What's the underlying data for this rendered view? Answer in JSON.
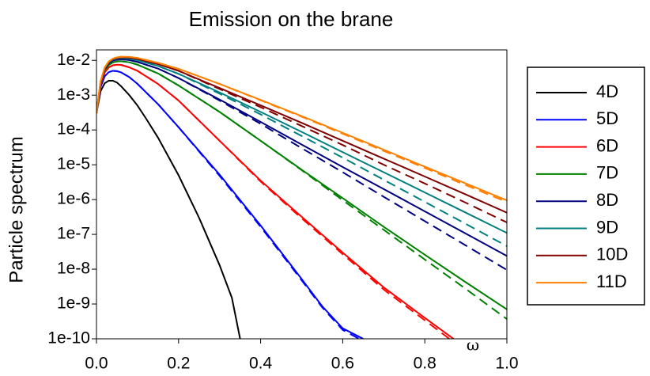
{
  "chart_data": {
    "type": "line",
    "title": "Emission on the brane",
    "xlabel": "ω",
    "ylabel": "Particle spectrum",
    "yscale": "log",
    "xlim": [
      0.0,
      1.0
    ],
    "ylim": [
      1e-10,
      0.02
    ],
    "x_ticks": [
      "0.0",
      "0.2",
      "0.4",
      "0.6",
      "0.8",
      "1.0"
    ],
    "y_ticks": [
      "1e-2",
      "1e-3",
      "1e-4",
      "1e-5",
      "1e-6",
      "1e-7",
      "1e-8",
      "1e-9",
      "1e-10"
    ],
    "legend_position": "right",
    "grid": false,
    "series": [
      {
        "name": "4D",
        "color": "#000000",
        "solid": [
          [
            0.0,
            0.0003
          ],
          [
            0.01,
            0.0013
          ],
          [
            0.02,
            0.0022
          ],
          [
            0.03,
            0.0026
          ],
          [
            0.04,
            0.0026
          ],
          [
            0.05,
            0.0023
          ],
          [
            0.06,
            0.0018
          ],
          [
            0.08,
            0.001
          ],
          [
            0.1,
            0.0005
          ],
          [
            0.12,
            0.00022
          ],
          [
            0.15,
            6e-05
          ],
          [
            0.2,
            5e-06
          ],
          [
            0.25,
            3e-07
          ],
          [
            0.3,
            1.3e-08
          ],
          [
            0.33,
            1.5e-09
          ],
          [
            0.35,
            1e-10
          ]
        ],
        "dashed": null
      },
      {
        "name": "5D",
        "color": "#0000ff",
        "solid": [
          [
            0.0,
            0.0003
          ],
          [
            0.01,
            0.0017
          ],
          [
            0.02,
            0.0035
          ],
          [
            0.03,
            0.0046
          ],
          [
            0.04,
            0.005
          ],
          [
            0.05,
            0.0049
          ],
          [
            0.06,
            0.0045
          ],
          [
            0.08,
            0.0033
          ],
          [
            0.1,
            0.0021
          ],
          [
            0.15,
            0.00055
          ],
          [
            0.2,
            0.00012
          ],
          [
            0.3,
            5.2e-06
          ],
          [
            0.4,
            1.8e-07
          ],
          [
            0.5,
            5.2e-09
          ],
          [
            0.55,
            8.6e-10
          ],
          [
            0.6,
            2e-10
          ],
          [
            0.65,
            1e-10
          ]
        ],
        "dashed": [
          [
            0.0,
            0.0003
          ],
          [
            0.01,
            0.0017
          ],
          [
            0.02,
            0.0035
          ],
          [
            0.03,
            0.0046
          ],
          [
            0.04,
            0.005
          ],
          [
            0.05,
            0.0049
          ],
          [
            0.06,
            0.0045
          ],
          [
            0.08,
            0.0033
          ],
          [
            0.1,
            0.0021
          ],
          [
            0.15,
            0.00055
          ],
          [
            0.2,
            0.00012
          ],
          [
            0.3,
            4.8e-06
          ],
          [
            0.4,
            1.65e-07
          ],
          [
            0.5,
            4.8e-09
          ],
          [
            0.55,
            8e-10
          ],
          [
            0.6,
            1.8e-10
          ],
          [
            0.64,
            1e-10
          ]
        ]
      },
      {
        "name": "6D",
        "color": "#ff0000",
        "solid": [
          [
            0.0,
            0.0003
          ],
          [
            0.01,
            0.002
          ],
          [
            0.02,
            0.0045
          ],
          [
            0.03,
            0.0063
          ],
          [
            0.04,
            0.0072
          ],
          [
            0.05,
            0.0075
          ],
          [
            0.06,
            0.0074
          ],
          [
            0.08,
            0.0063
          ],
          [
            0.1,
            0.005
          ],
          [
            0.15,
            0.0021
          ],
          [
            0.2,
            0.0007
          ],
          [
            0.3,
            4.9e-05
          ],
          [
            0.4,
            3.5e-06
          ],
          [
            0.5,
            3.2e-07
          ],
          [
            0.6,
            3e-08
          ],
          [
            0.7,
            3e-09
          ],
          [
            0.8,
            4e-10
          ],
          [
            0.87,
            1e-10
          ]
        ],
        "dashed": [
          [
            0.0,
            0.0003
          ],
          [
            0.01,
            0.002
          ],
          [
            0.02,
            0.0045
          ],
          [
            0.03,
            0.0063
          ],
          [
            0.04,
            0.0072
          ],
          [
            0.05,
            0.0075
          ],
          [
            0.06,
            0.0074
          ],
          [
            0.08,
            0.0063
          ],
          [
            0.1,
            0.005
          ],
          [
            0.15,
            0.0021
          ],
          [
            0.2,
            0.0007
          ],
          [
            0.3,
            4.9e-05
          ],
          [
            0.4,
            3.3e-06
          ],
          [
            0.5,
            2.9e-07
          ],
          [
            0.6,
            2.7e-08
          ],
          [
            0.7,
            2.6e-09
          ],
          [
            0.8,
            3.4e-10
          ],
          [
            0.86,
            1e-10
          ]
        ]
      },
      {
        "name": "7D",
        "color": "#008000",
        "solid": [
          [
            0.0,
            0.0003
          ],
          [
            0.01,
            0.0022
          ],
          [
            0.02,
            0.0052
          ],
          [
            0.03,
            0.0074
          ],
          [
            0.04,
            0.0087
          ],
          [
            0.05,
            0.0093
          ],
          [
            0.06,
            0.0094
          ],
          [
            0.08,
            0.0088
          ],
          [
            0.1,
            0.0075
          ],
          [
            0.15,
            0.0042
          ],
          [
            0.2,
            0.0019
          ],
          [
            0.3,
            0.00033
          ],
          [
            0.4,
            4.9e-05
          ],
          [
            0.5,
            7.2e-06
          ],
          [
            0.6,
            1.1e-06
          ],
          [
            0.7,
            1.65e-07
          ],
          [
            0.8,
            2.6e-08
          ],
          [
            0.9,
            4.2e-09
          ],
          [
            1.0,
            7e-10
          ]
        ],
        "dashed": [
          [
            0.0,
            0.0003
          ],
          [
            0.01,
            0.0022
          ],
          [
            0.02,
            0.0052
          ],
          [
            0.03,
            0.0074
          ],
          [
            0.04,
            0.0087
          ],
          [
            0.05,
            0.0093
          ],
          [
            0.06,
            0.0094
          ],
          [
            0.08,
            0.0088
          ],
          [
            0.1,
            0.0075
          ],
          [
            0.15,
            0.0042
          ],
          [
            0.2,
            0.0019
          ],
          [
            0.3,
            0.00033
          ],
          [
            0.4,
            4.9e-05
          ],
          [
            0.5,
            7e-06
          ],
          [
            0.6,
            9.6e-07
          ],
          [
            0.7,
            1.35e-07
          ],
          [
            0.8,
            1.9e-08
          ],
          [
            0.9,
            2.7e-09
          ],
          [
            1.0,
            3.7e-10
          ]
        ]
      },
      {
        "name": "8D",
        "color": "#000080",
        "solid": [
          [
            0.0,
            0.0003
          ],
          [
            0.01,
            0.0023
          ],
          [
            0.02,
            0.0056
          ],
          [
            0.03,
            0.0082
          ],
          [
            0.04,
            0.0097
          ],
          [
            0.05,
            0.0105
          ],
          [
            0.06,
            0.0107
          ],
          [
            0.08,
            0.0102
          ],
          [
            0.1,
            0.009
          ],
          [
            0.15,
            0.0058
          ],
          [
            0.2,
            0.0031
          ],
          [
            0.3,
            0.00075
          ],
          [
            0.4,
            0.00017
          ],
          [
            0.5,
            3.8e-05
          ],
          [
            0.6,
            8.6e-06
          ],
          [
            0.7,
            2e-06
          ],
          [
            0.8,
            4.6e-07
          ],
          [
            0.9,
            1.05e-07
          ],
          [
            1.0,
            2.4e-08
          ]
        ],
        "dashed": [
          [
            0.0,
            0.0003
          ],
          [
            0.01,
            0.0023
          ],
          [
            0.02,
            0.0056
          ],
          [
            0.03,
            0.0082
          ],
          [
            0.04,
            0.0097
          ],
          [
            0.05,
            0.0105
          ],
          [
            0.06,
            0.0107
          ],
          [
            0.08,
            0.0102
          ],
          [
            0.1,
            0.009
          ],
          [
            0.15,
            0.0058
          ],
          [
            0.2,
            0.0031
          ],
          [
            0.3,
            0.0007
          ],
          [
            0.4,
            0.00015
          ],
          [
            0.5,
            3e-05
          ],
          [
            0.6,
            6.1e-06
          ],
          [
            0.7,
            1.2e-06
          ],
          [
            0.8,
            2.4e-07
          ],
          [
            0.9,
            4.8e-08
          ],
          [
            1.0,
            9.5e-09
          ]
        ]
      },
      {
        "name": "9D",
        "color": "#008080",
        "solid": [
          [
            0.0,
            0.0003
          ],
          [
            0.01,
            0.0024
          ],
          [
            0.02,
            0.0059
          ],
          [
            0.03,
            0.0087
          ],
          [
            0.04,
            0.0104
          ],
          [
            0.05,
            0.0113
          ],
          [
            0.06,
            0.0116
          ],
          [
            0.08,
            0.0112
          ],
          [
            0.1,
            0.0101
          ],
          [
            0.15,
            0.0069
          ],
          [
            0.2,
            0.0041
          ],
          [
            0.3,
            0.0012
          ],
          [
            0.4,
            0.00033
          ],
          [
            0.5,
            8.8e-05
          ],
          [
            0.6,
            2.3e-05
          ],
          [
            0.7,
            6.1e-06
          ],
          [
            0.8,
            1.6e-06
          ],
          [
            0.9,
            4.2e-07
          ],
          [
            1.0,
            1.1e-07
          ]
        ],
        "dashed": [
          [
            0.0,
            0.0003
          ],
          [
            0.01,
            0.0024
          ],
          [
            0.02,
            0.0059
          ],
          [
            0.03,
            0.0087
          ],
          [
            0.04,
            0.0104
          ],
          [
            0.05,
            0.0113
          ],
          [
            0.06,
            0.0116
          ],
          [
            0.08,
            0.0112
          ],
          [
            0.1,
            0.0101
          ],
          [
            0.15,
            0.0069
          ],
          [
            0.2,
            0.0041
          ],
          [
            0.3,
            0.0011
          ],
          [
            0.4,
            0.00028
          ],
          [
            0.5,
            6.7e-05
          ],
          [
            0.6,
            1.6e-05
          ],
          [
            0.7,
            3.7e-06
          ],
          [
            0.8,
            8.6e-07
          ],
          [
            0.9,
            2e-07
          ],
          [
            1.0,
            4.6e-08
          ]
        ]
      },
      {
        "name": "10D",
        "color": "#800000",
        "solid": [
          [
            0.0,
            0.0003
          ],
          [
            0.01,
            0.0024
          ],
          [
            0.02,
            0.006
          ],
          [
            0.03,
            0.009
          ],
          [
            0.04,
            0.0108
          ],
          [
            0.05,
            0.0118
          ],
          [
            0.06,
            0.0122
          ],
          [
            0.08,
            0.012
          ],
          [
            0.1,
            0.011
          ],
          [
            0.15,
            0.0078
          ],
          [
            0.2,
            0.005
          ],
          [
            0.3,
            0.0016
          ],
          [
            0.4,
            0.00051
          ],
          [
            0.5,
            0.00016
          ],
          [
            0.6,
            4.9e-05
          ],
          [
            0.7,
            1.5e-05
          ],
          [
            0.8,
            4.6e-06
          ],
          [
            0.9,
            1.4e-06
          ],
          [
            1.0,
            4.2e-07
          ]
        ],
        "dashed": [
          [
            0.0,
            0.0003
          ],
          [
            0.01,
            0.0024
          ],
          [
            0.02,
            0.006
          ],
          [
            0.03,
            0.009
          ],
          [
            0.04,
            0.0108
          ],
          [
            0.05,
            0.0118
          ],
          [
            0.06,
            0.0122
          ],
          [
            0.08,
            0.012
          ],
          [
            0.1,
            0.011
          ],
          [
            0.15,
            0.0078
          ],
          [
            0.2,
            0.005
          ],
          [
            0.3,
            0.0015
          ],
          [
            0.4,
            0.00045
          ],
          [
            0.5,
            0.00013
          ],
          [
            0.6,
            3.7e-05
          ],
          [
            0.7,
            1e-05
          ],
          [
            0.8,
            2.9e-06
          ],
          [
            0.9,
            8.1e-07
          ],
          [
            1.0,
            2.2e-07
          ]
        ]
      },
      {
        "name": "11D",
        "color": "#ff8000",
        "solid": [
          [
            0.0,
            0.0003
          ],
          [
            0.01,
            0.0025
          ],
          [
            0.02,
            0.0062
          ],
          [
            0.03,
            0.0093
          ],
          [
            0.04,
            0.0112
          ],
          [
            0.05,
            0.0122
          ],
          [
            0.06,
            0.0127
          ],
          [
            0.08,
            0.0126
          ],
          [
            0.1,
            0.0117
          ],
          [
            0.15,
            0.0085
          ],
          [
            0.2,
            0.0057
          ],
          [
            0.3,
            0.0021
          ],
          [
            0.4,
            0.00073
          ],
          [
            0.5,
            0.00025
          ],
          [
            0.6,
            8.3e-05
          ],
          [
            0.7,
            2.7e-05
          ],
          [
            0.8,
            8.8e-06
          ],
          [
            0.9,
            2.9e-06
          ],
          [
            1.0,
            9.5e-07
          ]
        ],
        "dashed": [
          [
            0.0,
            0.0003
          ],
          [
            0.01,
            0.0025
          ],
          [
            0.02,
            0.0062
          ],
          [
            0.03,
            0.0093
          ],
          [
            0.04,
            0.0112
          ],
          [
            0.05,
            0.0122
          ],
          [
            0.06,
            0.0127
          ],
          [
            0.08,
            0.0126
          ],
          [
            0.1,
            0.0117
          ],
          [
            0.15,
            0.0085
          ],
          [
            0.2,
            0.0057
          ],
          [
            0.3,
            0.0021
          ],
          [
            0.4,
            0.00071
          ],
          [
            0.5,
            0.00024
          ],
          [
            0.6,
            7.8e-05
          ],
          [
            0.7,
            2.5e-05
          ],
          [
            0.8,
            8.1e-06
          ],
          [
            0.9,
            2.6e-06
          ],
          [
            1.0,
            8.5e-07
          ]
        ]
      }
    ]
  }
}
